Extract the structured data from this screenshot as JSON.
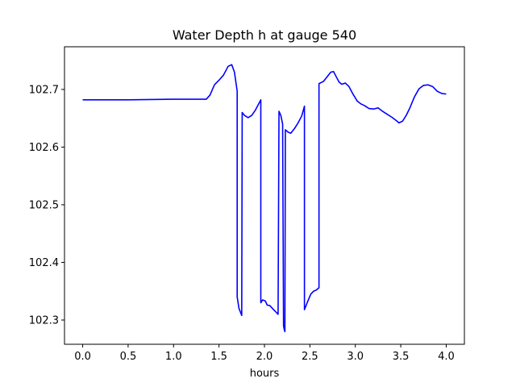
{
  "chart_data": {
    "type": "line",
    "title": "Water Depth h at gauge 540",
    "xlabel": "hours",
    "ylabel": "",
    "xlim": [
      -0.2,
      4.2
    ],
    "ylim": [
      102.258,
      102.774
    ],
    "x_ticks": [
      {
        "value": 0.0,
        "label": "0.0"
      },
      {
        "value": 0.5,
        "label": "0.5"
      },
      {
        "value": 1.0,
        "label": "1.0"
      },
      {
        "value": 1.5,
        "label": "1.5"
      },
      {
        "value": 2.0,
        "label": "2.0"
      },
      {
        "value": 2.5,
        "label": "2.5"
      },
      {
        "value": 3.0,
        "label": "3.0"
      },
      {
        "value": 3.5,
        "label": "3.5"
      },
      {
        "value": 4.0,
        "label": "4.0"
      }
    ],
    "y_ticks": [
      {
        "value": 102.3,
        "label": "102.3"
      },
      {
        "value": 102.4,
        "label": "102.4"
      },
      {
        "value": 102.5,
        "label": "102.5"
      },
      {
        "value": 102.6,
        "label": "102.6"
      },
      {
        "value": 102.7,
        "label": "102.7"
      }
    ],
    "grid": false,
    "series": [
      {
        "color": "#0000ff",
        "points": [
          [
            0.0,
            102.682
          ],
          [
            0.5,
            102.682
          ],
          [
            1.0,
            102.683
          ],
          [
            1.36,
            102.683
          ],
          [
            1.4,
            102.69
          ],
          [
            1.45,
            102.708
          ],
          [
            1.5,
            102.716
          ],
          [
            1.55,
            102.725
          ],
          [
            1.6,
            102.74
          ],
          [
            1.64,
            102.743
          ],
          [
            1.67,
            102.73
          ],
          [
            1.7,
            102.697
          ],
          [
            1.7,
            102.34
          ],
          [
            1.72,
            102.32
          ],
          [
            1.75,
            102.308
          ],
          [
            1.755,
            102.66
          ],
          [
            1.78,
            102.655
          ],
          [
            1.82,
            102.651
          ],
          [
            1.86,
            102.655
          ],
          [
            1.9,
            102.664
          ],
          [
            1.94,
            102.676
          ],
          [
            1.96,
            102.682
          ],
          [
            1.96,
            102.33
          ],
          [
            1.98,
            102.335
          ],
          [
            2.01,
            102.333
          ],
          [
            2.03,
            102.326
          ],
          [
            2.06,
            102.325
          ],
          [
            2.1,
            102.318
          ],
          [
            2.12,
            102.315
          ],
          [
            2.15,
            102.31
          ],
          [
            2.16,
            102.662
          ],
          [
            2.18,
            102.655
          ],
          [
            2.2,
            102.64
          ],
          [
            2.21,
            102.29
          ],
          [
            2.22,
            102.282
          ],
          [
            2.225,
            102.28
          ],
          [
            2.23,
            102.63
          ],
          [
            2.26,
            102.626
          ],
          [
            2.29,
            102.624
          ],
          [
            2.33,
            102.632
          ],
          [
            2.37,
            102.642
          ],
          [
            2.41,
            102.654
          ],
          [
            2.44,
            102.671
          ],
          [
            2.44,
            102.318
          ],
          [
            2.47,
            102.33
          ],
          [
            2.51,
            102.345
          ],
          [
            2.54,
            102.35
          ],
          [
            2.57,
            102.352
          ],
          [
            2.6,
            102.356
          ],
          [
            2.6,
            102.71
          ],
          [
            2.65,
            102.714
          ],
          [
            2.7,
            102.724
          ],
          [
            2.73,
            102.73
          ],
          [
            2.76,
            102.731
          ],
          [
            2.79,
            102.722
          ],
          [
            2.82,
            102.713
          ],
          [
            2.85,
            102.709
          ],
          [
            2.89,
            102.711
          ],
          [
            2.93,
            102.705
          ],
          [
            2.97,
            102.693
          ],
          [
            3.02,
            102.68
          ],
          [
            3.06,
            102.675
          ],
          [
            3.1,
            102.672
          ],
          [
            3.15,
            102.667
          ],
          [
            3.2,
            102.666
          ],
          [
            3.25,
            102.668
          ],
          [
            3.3,
            102.662
          ],
          [
            3.35,
            102.657
          ],
          [
            3.4,
            102.652
          ],
          [
            3.45,
            102.646
          ],
          [
            3.48,
            102.642
          ],
          [
            3.52,
            102.645
          ],
          [
            3.56,
            102.655
          ],
          [
            3.6,
            102.668
          ],
          [
            3.65,
            102.687
          ],
          [
            3.7,
            102.701
          ],
          [
            3.75,
            102.707
          ],
          [
            3.8,
            102.708
          ],
          [
            3.85,
            102.705
          ],
          [
            3.9,
            102.697
          ],
          [
            3.95,
            102.693
          ],
          [
            4.0,
            102.692
          ]
        ]
      }
    ]
  }
}
